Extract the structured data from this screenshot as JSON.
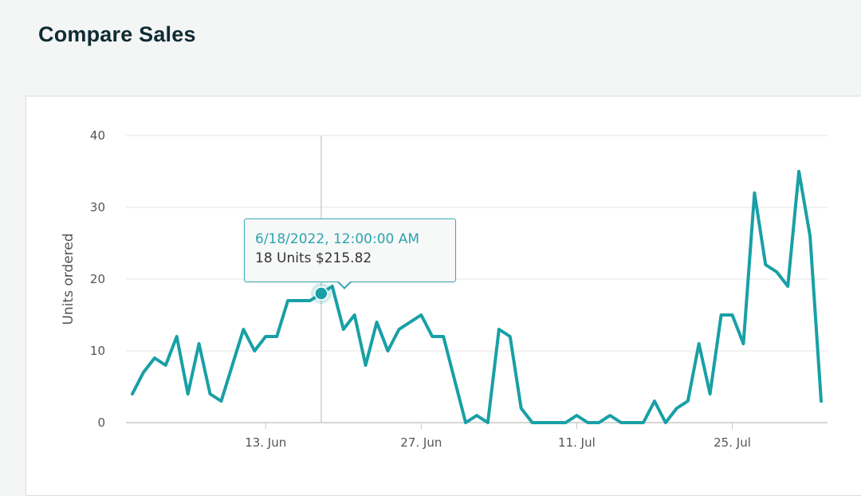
{
  "page": {
    "title": "Compare Sales"
  },
  "colors": {
    "line": "#18a0a6",
    "grid": "#e4e4e4",
    "axis": "#c8c8c8",
    "tooltip_border": "#3fa9b6",
    "tooltip_date": "#2aa4b0"
  },
  "tooltip": {
    "date": "6/18/2022, 12:00:00 AM",
    "value": "18 Units $215.82",
    "point_index": 17
  },
  "chart_data": {
    "type": "line",
    "title": "",
    "xlabel": "",
    "ylabel": "Units ordered",
    "ylim": [
      0,
      40
    ],
    "yticks": [
      0,
      10,
      20,
      30,
      40
    ],
    "xticks": [
      {
        "label": "13. Jun",
        "date": "2022-06-13"
      },
      {
        "label": "27. Jun",
        "date": "2022-06-27"
      },
      {
        "label": "11. Jul",
        "date": "2022-07-11"
      },
      {
        "label": "25. Jul",
        "date": "2022-07-25"
      }
    ],
    "grid": true,
    "series": [
      {
        "x": [
          "2022-06-01",
          "2022-06-02",
          "2022-06-03",
          "2022-06-04",
          "2022-06-05",
          "2022-06-06",
          "2022-06-07",
          "2022-06-08",
          "2022-06-09",
          "2022-06-10",
          "2022-06-11",
          "2022-06-12",
          "2022-06-13",
          "2022-06-14",
          "2022-06-15",
          "2022-06-16",
          "2022-06-17",
          "2022-06-18",
          "2022-06-19",
          "2022-06-20",
          "2022-06-21",
          "2022-06-22",
          "2022-06-23",
          "2022-06-24",
          "2022-06-25",
          "2022-06-26",
          "2022-06-27",
          "2022-06-28",
          "2022-06-29",
          "2022-06-30",
          "2022-07-01",
          "2022-07-02",
          "2022-07-03",
          "2022-07-04",
          "2022-07-05",
          "2022-07-06",
          "2022-07-07",
          "2022-07-08",
          "2022-07-09",
          "2022-07-10",
          "2022-07-11",
          "2022-07-12",
          "2022-07-13",
          "2022-07-14",
          "2022-07-15",
          "2022-07-16",
          "2022-07-17",
          "2022-07-18",
          "2022-07-19",
          "2022-07-20",
          "2022-07-21",
          "2022-07-22",
          "2022-07-23",
          "2022-07-24",
          "2022-07-25",
          "2022-07-26",
          "2022-07-27",
          "2022-07-28",
          "2022-07-29",
          "2022-07-30",
          "2022-07-31",
          "2022-08-01",
          "2022-08-02"
        ],
        "y": [
          4,
          7,
          9,
          8,
          12,
          4,
          11,
          4,
          3,
          8,
          13,
          10,
          12,
          12,
          17,
          17,
          17,
          18,
          19,
          13,
          15,
          8,
          14,
          10,
          13,
          14,
          15,
          12,
          12,
          6,
          0,
          1,
          0,
          13,
          12,
          2,
          0,
          0,
          0,
          0,
          1,
          0,
          0,
          1,
          0,
          0,
          0,
          3,
          0,
          2,
          3,
          11,
          4,
          15,
          15,
          11,
          32,
          22,
          21,
          19,
          35,
          26,
          3
        ]
      }
    ]
  }
}
